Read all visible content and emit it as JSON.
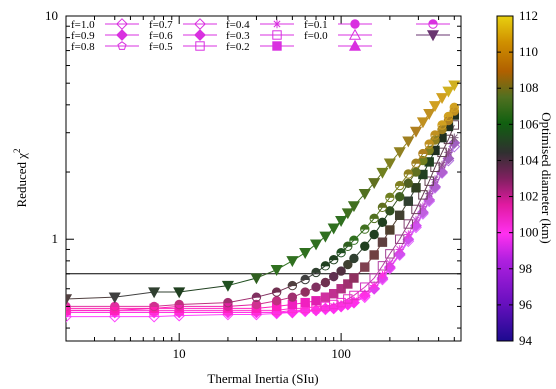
{
  "chart_data": {
    "type": "scatter",
    "xlabel": "Thermal Inertia (SIu)",
    "ylabel_main": "Reduced χ",
    "ylabel_sup": "2",
    "x_scale": "log",
    "y_scale": "log",
    "xlim": [
      2,
      550
    ],
    "ylim": [
      0.35,
      10
    ],
    "x_tick_labels": [
      {
        "value": 10,
        "label": "10"
      },
      {
        "value": 100,
        "label": "100"
      }
    ],
    "y_tick_labels": [
      {
        "value": 1,
        "label": "1"
      },
      {
        "value": 10,
        "label": "10"
      }
    ],
    "reference_line_y": 0.7,
    "colorbar": {
      "label": "Optimised diameter (km)",
      "range": [
        94,
        112
      ],
      "ticks": [
        "94",
        "96",
        "98",
        "100",
        "102",
        "104",
        "106",
        "108",
        "110",
        "112"
      ]
    },
    "legend": [
      {
        "name": "f=1.0",
        "marker": "diamond-open",
        "color": "#d930e0"
      },
      {
        "name": "f=0.9",
        "marker": "diamond-filled",
        "color": "#d930e0"
      },
      {
        "name": "f=0.8",
        "marker": "pentagon-open",
        "color": "#d930e0"
      },
      {
        "name": "f=0.7",
        "marker": "diamond-open",
        "color": "#d930e0"
      },
      {
        "name": "f=0.6",
        "marker": "diamond-filled",
        "color": "#d930e0"
      },
      {
        "name": "f=0.5",
        "marker": "square-open",
        "color": "#d930e0"
      },
      {
        "name": "f=0.4",
        "marker": "star",
        "color": "#d930e0"
      },
      {
        "name": "f=0.3",
        "marker": "square-open",
        "color": "#d930e0"
      },
      {
        "name": "f=0.2",
        "marker": "square-filled",
        "color": "#d930e0"
      },
      {
        "name": "f=0.1",
        "marker": "circle-filled",
        "color": "#d930e0"
      },
      {
        "name": "f=0.0",
        "marker": "triangle-open",
        "color": "#d930e0"
      },
      {
        "name": "",
        "marker": "triangle-filled",
        "color": "#d930e0"
      },
      {
        "name": "",
        "marker": "circle-half",
        "color": "#d930e0"
      },
      {
        "name": "",
        "marker": "triangle-down-filled",
        "color": "#6a3570"
      }
    ],
    "series": [
      {
        "id": "s1",
        "marker": "diamond-open",
        "x": [
          2,
          4,
          7,
          10,
          20,
          30,
          40,
          50,
          60,
          70,
          80,
          90,
          100,
          110,
          120,
          140,
          160,
          180,
          200,
          230,
          260,
          290,
          320,
          350,
          380,
          420,
          460,
          500
        ],
        "y": [
          0.45,
          0.45,
          0.45,
          0.455,
          0.46,
          0.46,
          0.465,
          0.47,
          0.475,
          0.48,
          0.485,
          0.49,
          0.5,
          0.51,
          0.52,
          0.55,
          0.6,
          0.66,
          0.74,
          0.85,
          0.98,
          1.13,
          1.3,
          1.48,
          1.7,
          1.98,
          2.25,
          2.6
        ],
        "colors": [
          "#ff40ff",
          "#ff40ff",
          "#ff40ff",
          "#ff40ff",
          "#ff40ff",
          "#ff40ff",
          "#ff40ff",
          "#ff40ff",
          "#ff40ff",
          "#ff40ff",
          "#ff40ff",
          "#ff40ff",
          "#ff40ff",
          "#ff40ff",
          "#ff40ff",
          "#ff40ff",
          "#f050ff",
          "#f050ff",
          "#f050ff",
          "#e060ff",
          "#e060ff",
          "#e060ff",
          "#d070ff",
          "#d070ff",
          "#c070f0",
          "#c070f0",
          "#b070e0",
          "#b070e0"
        ]
      },
      {
        "id": "s2",
        "marker": "diamond-filled",
        "x": [
          2,
          4,
          7,
          10,
          20,
          30,
          40,
          50,
          60,
          70,
          80,
          90,
          100,
          110,
          120,
          140,
          160,
          180,
          200,
          230,
          260,
          290,
          320,
          350,
          380,
          420,
          460,
          500
        ],
        "y": [
          0.47,
          0.47,
          0.47,
          0.47,
          0.47,
          0.47,
          0.47,
          0.47,
          0.48,
          0.48,
          0.49,
          0.49,
          0.5,
          0.51,
          0.52,
          0.56,
          0.6,
          0.67,
          0.75,
          0.86,
          1.0,
          1.15,
          1.32,
          1.5,
          1.72,
          2.0,
          2.3,
          2.7
        ],
        "colors": [
          "#ff30f0",
          "#ff30f0",
          "#ff30f0",
          "#ff30f0",
          "#ff30f0",
          "#ff30f0",
          "#ff30f0",
          "#ff30f0",
          "#ff30f0",
          "#ff30f0",
          "#ff30f0",
          "#ff30f0",
          "#ff30f0",
          "#ff30f0",
          "#ff30f0",
          "#ff30f0",
          "#e040f0",
          "#e040f0",
          "#e040f0",
          "#d050f0",
          "#d050f0",
          "#d050f0",
          "#c060e0",
          "#c060e0",
          "#b060d0",
          "#b060d0",
          "#a060c0",
          "#a060c0"
        ]
      },
      {
        "id": "s3",
        "marker": "star",
        "x": [
          2,
          4,
          7,
          10,
          20,
          30,
          40,
          50,
          60,
          70,
          80,
          90,
          100,
          110,
          120,
          140,
          160,
          180,
          200,
          230,
          260,
          290,
          320,
          350,
          380,
          420,
          460,
          500
        ],
        "y": [
          0.47,
          0.47,
          0.47,
          0.47,
          0.47,
          0.47,
          0.47,
          0.48,
          0.48,
          0.48,
          0.49,
          0.5,
          0.51,
          0.52,
          0.53,
          0.57,
          0.62,
          0.69,
          0.78,
          0.9,
          1.05,
          1.22,
          1.4,
          1.6,
          1.85,
          2.15,
          2.45,
          2.85
        ],
        "colors": [
          "#ff30e0",
          "#ff30e0",
          "#ff30e0",
          "#ff30e0",
          "#ff30e0",
          "#ff30e0",
          "#ff30e0",
          "#ff30e0",
          "#ff30e0",
          "#ff30e0",
          "#ff30e0",
          "#ff30e0",
          "#ff30e0",
          "#ff30e0",
          "#ff30e0",
          "#ff30e0",
          "#ff30e0",
          "#ff30e0",
          "#e040e0",
          "#e040e0",
          "#e040e0",
          "#c050d0",
          "#c050d0",
          "#a050b0",
          "#a050b0",
          "#905090",
          "#905090",
          "#806080"
        ]
      },
      {
        "id": "s4",
        "marker": "square-open",
        "x": [
          2,
          4,
          7,
          10,
          20,
          30,
          40,
          50,
          60,
          70,
          80,
          90,
          100,
          110,
          120,
          140,
          160,
          180,
          200,
          230,
          260,
          290,
          320,
          350,
          380,
          420,
          460,
          500
        ],
        "y": [
          0.48,
          0.48,
          0.48,
          0.48,
          0.48,
          0.48,
          0.48,
          0.49,
          0.49,
          0.5,
          0.5,
          0.51,
          0.52,
          0.54,
          0.56,
          0.61,
          0.67,
          0.76,
          0.86,
          1.0,
          1.17,
          1.36,
          1.58,
          1.82,
          2.1,
          2.45,
          2.8,
          3.25
        ],
        "colors": [
          "#ff30d0",
          "#ff30d0",
          "#ff30d0",
          "#ff30d0",
          "#ff30d0",
          "#ff30d0",
          "#ff30d0",
          "#ff30d0",
          "#ff30d0",
          "#ff30d0",
          "#f030d0",
          "#f030d0",
          "#f030d0",
          "#e030c0",
          "#e030c0",
          "#d030c0",
          "#c040b0",
          "#b040a0",
          "#a04090",
          "#904080",
          "#804070",
          "#704060",
          "#604050",
          "#604050",
          "#604050",
          "#604050",
          "#604050",
          "#604050"
        ]
      },
      {
        "id": "s5",
        "marker": "square-filled",
        "x": [
          2,
          4,
          7,
          10,
          20,
          30,
          40,
          50,
          60,
          70,
          80,
          90,
          100,
          110,
          120,
          140,
          160,
          180,
          200,
          230,
          260,
          290,
          320,
          350,
          380,
          420,
          460,
          500
        ],
        "y": [
          0.48,
          0.48,
          0.49,
          0.49,
          0.49,
          0.49,
          0.5,
          0.51,
          0.52,
          0.53,
          0.55,
          0.57,
          0.6,
          0.63,
          0.67,
          0.75,
          0.85,
          0.97,
          1.1,
          1.28,
          1.48,
          1.7,
          1.95,
          2.22,
          2.5,
          2.85,
          3.2,
          3.6
        ],
        "colors": [
          "#ff20c0",
          "#ff20c0",
          "#ff20c0",
          "#ff20c0",
          "#ff20c0",
          "#ff20c0",
          "#ff20c0",
          "#f020c0",
          "#f020c0",
          "#e020b0",
          "#d030a0",
          "#c03090",
          "#b03080",
          "#a03070",
          "#903060",
          "#804050",
          "#704040",
          "#604040",
          "#504030",
          "#404030",
          "#304030",
          "#304020",
          "#204020",
          "#204020",
          "#203020",
          "#203020",
          "#203020",
          "#203020"
        ]
      },
      {
        "id": "s6",
        "marker": "circle-filled",
        "x": [
          2,
          4,
          7,
          10,
          20,
          30,
          40,
          50,
          60,
          70,
          80,
          90,
          100,
          110,
          120,
          140,
          160,
          180,
          200,
          230,
          260,
          290,
          320,
          350,
          380,
          420,
          460,
          500
        ],
        "y": [
          0.49,
          0.49,
          0.49,
          0.5,
          0.5,
          0.51,
          0.53,
          0.55,
          0.58,
          0.61,
          0.64,
          0.68,
          0.72,
          0.77,
          0.82,
          0.93,
          1.05,
          1.19,
          1.34,
          1.55,
          1.78,
          2.0,
          2.25,
          2.5,
          2.78,
          3.1,
          3.4,
          3.75
        ],
        "colors": [
          "#ff20b0",
          "#ff20b0",
          "#ff20b0",
          "#f020b0",
          "#e020a0",
          "#d03090",
          "#c03080",
          "#a03070",
          "#903060",
          "#803060",
          "#703050",
          "#603050",
          "#503040",
          "#404030",
          "#304030",
          "#204020",
          "#204020",
          "#204020",
          "#305020",
          "#406020",
          "#506020",
          "#607020",
          "#708020",
          "#808020",
          "#908020",
          "#a08020",
          "#b08020",
          "#c09020"
        ]
      },
      {
        "id": "s7",
        "marker": "circle-half",
        "x": [
          2,
          4,
          7,
          10,
          20,
          30,
          40,
          50,
          60,
          70,
          80,
          90,
          100,
          110,
          120,
          140,
          160,
          180,
          200,
          230,
          260,
          290,
          320,
          350,
          380,
          420,
          460,
          500
        ],
        "y": [
          0.5,
          0.5,
          0.5,
          0.51,
          0.52,
          0.55,
          0.58,
          0.62,
          0.66,
          0.71,
          0.76,
          0.81,
          0.87,
          0.93,
          0.99,
          1.11,
          1.24,
          1.39,
          1.54,
          1.74,
          1.96,
          2.19,
          2.42,
          2.67,
          2.93,
          3.25,
          3.55,
          3.9
        ],
        "colors": [
          "#e030a0",
          "#e030a0",
          "#d03090",
          "#c03080",
          "#a03070",
          "#803060",
          "#703050",
          "#504040",
          "#404040",
          "#304030",
          "#204020",
          "#204020",
          "#205020",
          "#306020",
          "#307020",
          "#407020",
          "#507020",
          "#607020",
          "#708020",
          "#808020",
          "#908020",
          "#a08020",
          "#b08020",
          "#c09020",
          "#c09020",
          "#d0a020",
          "#d0a020",
          "#d0a020"
        ]
      },
      {
        "id": "s8",
        "marker": "triangle-down-filled",
        "x": [
          2,
          4,
          7,
          10,
          20,
          30,
          40,
          50,
          60,
          70,
          80,
          90,
          100,
          110,
          120,
          140,
          160,
          180,
          200,
          230,
          260,
          290,
          320,
          350,
          380,
          420,
          460,
          500
        ],
        "y": [
          0.54,
          0.55,
          0.58,
          0.58,
          0.62,
          0.67,
          0.73,
          0.8,
          0.87,
          0.95,
          1.03,
          1.12,
          1.21,
          1.31,
          1.41,
          1.6,
          1.79,
          1.99,
          2.19,
          2.46,
          2.75,
          3.04,
          3.35,
          3.65,
          3.96,
          4.3,
          4.6,
          4.9
        ],
        "colors": [
          "#504040",
          "#404040",
          "#304030",
          "#204020",
          "#205020",
          "#306020",
          "#307020",
          "#307020",
          "#307020",
          "#307020",
          "#307020",
          "#307020",
          "#307020",
          "#407020",
          "#407020",
          "#507020",
          "#607020",
          "#708020",
          "#808020",
          "#908020",
          "#a08020",
          "#b08020",
          "#c09020",
          "#c09020",
          "#d0a020",
          "#d0a020",
          "#d0b020",
          "#d0b020"
        ]
      }
    ]
  }
}
